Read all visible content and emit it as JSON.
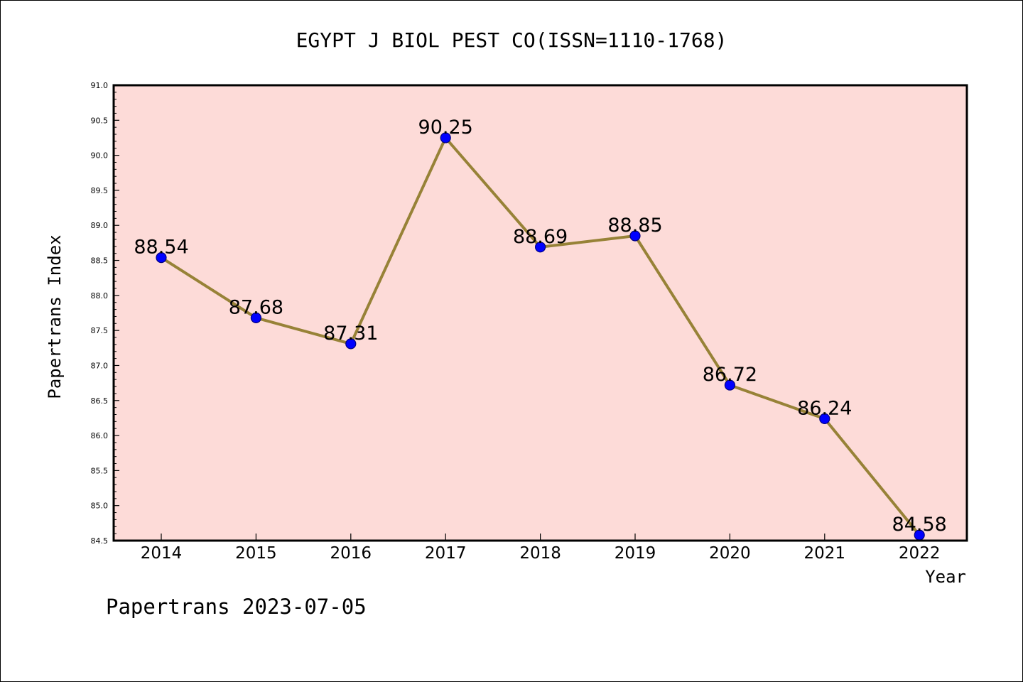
{
  "chart_data": {
    "type": "line",
    "title": "EGYPT J BIOL PEST CO(ISSN=1110-1768)",
    "xlabel": "Year",
    "ylabel": "Papertrans Index",
    "footer": "Papertrans 2023-07-05",
    "categories": [
      "2014",
      "2015",
      "2016",
      "2017",
      "2018",
      "2019",
      "2020",
      "2021",
      "2022"
    ],
    "series": [
      {
        "values": [
          88.54,
          87.68,
          87.31,
          90.25,
          88.69,
          88.85,
          86.72,
          86.24,
          84.58
        ]
      }
    ],
    "data_labels": [
      "88.54",
      "87.68",
      "87.31",
      "90.25",
      "88.69",
      "88.85",
      "86.72",
      "86.24",
      "84.58"
    ],
    "ylim": [
      84.5,
      91.0
    ],
    "yticks": [
      "84.5",
      "85.0",
      "85.5",
      "86.0",
      "86.5",
      "87.0",
      "87.5",
      "88.0",
      "88.5",
      "89.0",
      "89.5",
      "90.0",
      "90.5",
      "91.0"
    ],
    "grid": false,
    "legend": "none",
    "colors": {
      "plot_background": "#fddbd8",
      "line": "#978237",
      "marker": "#0000ff",
      "marker_edge": "#000080",
      "axes": "#000000"
    }
  }
}
